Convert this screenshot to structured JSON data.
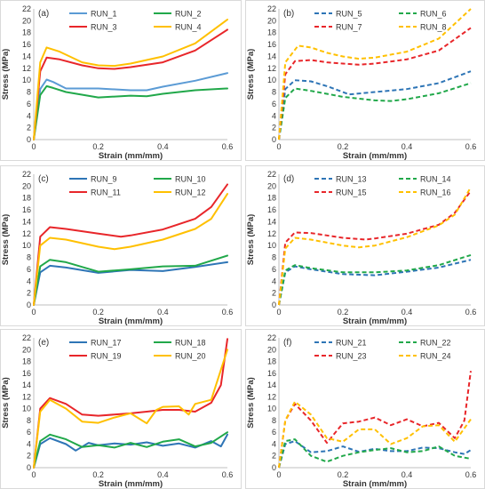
{
  "chart_data": [
    {
      "type": "line",
      "panel_label": "(a)",
      "xlabel": "Strain (mm/mm)",
      "ylabel": "Stress (MPa)",
      "xlim": [
        0,
        0.6
      ],
      "ylim": [
        0,
        22
      ],
      "xticks": [
        "0",
        "0.2",
        "0.4",
        "0.6"
      ],
      "yticks": [
        "0",
        "2",
        "4",
        "6",
        "8",
        "10",
        "12",
        "14",
        "16",
        "18",
        "20",
        "22"
      ],
      "legend": "top",
      "series": [
        {
          "name": "RUN_1",
          "color": "#5b9bd5",
          "dashed": false,
          "x": [
            0,
            0.02,
            0.04,
            0.06,
            0.1,
            0.2,
            0.3,
            0.35,
            0.4,
            0.5,
            0.6
          ],
          "y": [
            0,
            8.5,
            10.1,
            9.7,
            8.6,
            8.6,
            8.3,
            8.3,
            8.9,
            9.9,
            11.2
          ]
        },
        {
          "name": "RUN_2",
          "color": "#21a84a",
          "dashed": false,
          "x": [
            0,
            0.02,
            0.04,
            0.06,
            0.1,
            0.2,
            0.3,
            0.35,
            0.4,
            0.5,
            0.6
          ],
          "y": [
            0,
            7.5,
            9.0,
            8.7,
            8.0,
            7.1,
            7.4,
            7.3,
            7.7,
            8.3,
            8.6
          ]
        },
        {
          "name": "RUN_3",
          "color": "#e8262a",
          "dashed": false,
          "x": [
            0,
            0.02,
            0.04,
            0.08,
            0.15,
            0.2,
            0.25,
            0.3,
            0.4,
            0.5,
            0.6
          ],
          "y": [
            0,
            11.5,
            13.8,
            13.5,
            12.5,
            12.0,
            11.9,
            12.2,
            13.0,
            15.0,
            18.5
          ]
        },
        {
          "name": "RUN_4",
          "color": "#ffc000",
          "dashed": false,
          "x": [
            0,
            0.02,
            0.04,
            0.08,
            0.15,
            0.2,
            0.25,
            0.3,
            0.4,
            0.5,
            0.6
          ],
          "y": [
            0,
            13.0,
            15.5,
            14.8,
            13.0,
            12.5,
            12.4,
            12.8,
            14.0,
            16.2,
            20.2
          ]
        }
      ]
    },
    {
      "type": "line",
      "panel_label": "(b)",
      "xlabel": "Strain (mm/mm)",
      "ylabel": "Stress (MPa)",
      "xlim": [
        0,
        0.6
      ],
      "ylim": [
        0,
        22
      ],
      "xticks": [
        "0",
        "0.2",
        "0.4",
        "0.6"
      ],
      "yticks": [
        "0",
        "2",
        "4",
        "6",
        "8",
        "10",
        "12",
        "14",
        "16",
        "18",
        "20",
        "22"
      ],
      "legend": "top",
      "series": [
        {
          "name": "RUN_5",
          "color": "#2e75b6",
          "dashed": true,
          "x": [
            0,
            0.02,
            0.05,
            0.1,
            0.15,
            0.2,
            0.22,
            0.3,
            0.4,
            0.5,
            0.6
          ],
          "y": [
            0,
            8.5,
            10.0,
            9.8,
            9.0,
            8.0,
            7.6,
            8.0,
            8.5,
            9.5,
            11.5
          ]
        },
        {
          "name": "RUN_6",
          "color": "#21a84a",
          "dashed": true,
          "x": [
            0,
            0.02,
            0.05,
            0.1,
            0.2,
            0.3,
            0.35,
            0.4,
            0.5,
            0.6
          ],
          "y": [
            0,
            7.0,
            8.6,
            8.2,
            7.2,
            6.6,
            6.5,
            6.8,
            7.8,
            9.5
          ]
        },
        {
          "name": "RUN_7",
          "color": "#e8262a",
          "dashed": true,
          "x": [
            0,
            0.02,
            0.05,
            0.1,
            0.15,
            0.2,
            0.25,
            0.3,
            0.4,
            0.5,
            0.6
          ],
          "y": [
            0,
            11.0,
            13.2,
            13.4,
            13.0,
            12.8,
            12.6,
            12.8,
            13.5,
            15.0,
            18.8
          ]
        },
        {
          "name": "RUN_8",
          "color": "#ffc000",
          "dashed": true,
          "x": [
            0,
            0.02,
            0.06,
            0.1,
            0.15,
            0.2,
            0.25,
            0.3,
            0.4,
            0.5,
            0.6
          ],
          "y": [
            0,
            13.0,
            15.8,
            15.5,
            14.6,
            14.0,
            13.6,
            13.8,
            14.8,
            17.0,
            22.0
          ]
        }
      ]
    },
    {
      "type": "line",
      "panel_label": "(c)",
      "xlabel": "Strain (mm/mm)",
      "ylabel": "Stress (MPa)",
      "xlim": [
        0,
        0.6
      ],
      "ylim": [
        0,
        22
      ],
      "xticks": [
        "0",
        "0.2",
        "0.4",
        "0.6"
      ],
      "yticks": [
        "0",
        "2",
        "4",
        "6",
        "8",
        "10",
        "12",
        "14",
        "16",
        "18",
        "20",
        "22"
      ],
      "legend": "top",
      "series": [
        {
          "name": "RUN_9",
          "color": "#2e75b6",
          "dashed": false,
          "x": [
            0,
            0.02,
            0.05,
            0.1,
            0.2,
            0.3,
            0.35,
            0.4,
            0.5,
            0.6
          ],
          "y": [
            0,
            5.5,
            6.6,
            6.3,
            5.4,
            5.9,
            5.8,
            5.7,
            6.4,
            7.2
          ]
        },
        {
          "name": "RUN_10",
          "color": "#21a84a",
          "dashed": false,
          "x": [
            0,
            0.02,
            0.05,
            0.1,
            0.2,
            0.3,
            0.4,
            0.5,
            0.6
          ],
          "y": [
            0,
            6.5,
            7.6,
            7.2,
            5.6,
            6.0,
            6.5,
            6.6,
            8.3
          ]
        },
        {
          "name": "RUN_11",
          "color": "#e8262a",
          "dashed": false,
          "x": [
            0,
            0.02,
            0.05,
            0.1,
            0.2,
            0.27,
            0.3,
            0.4,
            0.5,
            0.55,
            0.6
          ],
          "y": [
            0,
            11.5,
            13.1,
            12.8,
            12.0,
            11.5,
            11.7,
            12.7,
            14.5,
            16.5,
            20.3
          ]
        },
        {
          "name": "RUN_12",
          "color": "#ffc000",
          "dashed": false,
          "x": [
            0,
            0.02,
            0.05,
            0.1,
            0.2,
            0.25,
            0.3,
            0.4,
            0.5,
            0.55,
            0.6
          ],
          "y": [
            0,
            10.0,
            11.3,
            11.0,
            9.8,
            9.4,
            9.8,
            11.0,
            12.8,
            14.5,
            18.7
          ]
        }
      ]
    },
    {
      "type": "line",
      "panel_label": "(d)",
      "xlabel": "Strain (mm/mm)",
      "ylabel": "Stress (MPa)",
      "xlim": [
        0,
        0.6
      ],
      "ylim": [
        0,
        22
      ],
      "xticks": [
        "0",
        "0.2",
        "0.4",
        "0.6"
      ],
      "yticks": [
        "0",
        "2",
        "4",
        "6",
        "8",
        "10",
        "12",
        "14",
        "16",
        "18",
        "20",
        "22"
      ],
      "legend": "top",
      "series": [
        {
          "name": "RUN_13",
          "color": "#2e75b6",
          "dashed": true,
          "x": [
            0,
            0.02,
            0.05,
            0.1,
            0.2,
            0.3,
            0.4,
            0.5,
            0.6
          ],
          "y": [
            0,
            5.5,
            6.5,
            6.0,
            5.2,
            5.0,
            5.6,
            6.3,
            7.6
          ]
        },
        {
          "name": "RUN_14",
          "color": "#21a84a",
          "dashed": true,
          "x": [
            0,
            0.02,
            0.05,
            0.1,
            0.2,
            0.3,
            0.4,
            0.5,
            0.6
          ],
          "y": [
            0,
            5.8,
            6.7,
            6.2,
            5.5,
            5.5,
            5.8,
            6.7,
            8.4
          ]
        },
        {
          "name": "RUN_15",
          "color": "#e8262a",
          "dashed": true,
          "x": [
            0,
            0.02,
            0.05,
            0.1,
            0.2,
            0.27,
            0.3,
            0.4,
            0.5,
            0.55,
            0.6
          ],
          "y": [
            0,
            10.5,
            12.2,
            12.1,
            11.3,
            11.0,
            11.2,
            12.0,
            13.5,
            15.5,
            19.2
          ]
        },
        {
          "name": "RUN_16",
          "color": "#ffc000",
          "dashed": true,
          "x": [
            0,
            0.02,
            0.05,
            0.1,
            0.2,
            0.25,
            0.3,
            0.4,
            0.5,
            0.55,
            0.6
          ],
          "y": [
            0,
            9.5,
            11.3,
            11.0,
            10.0,
            9.7,
            10.0,
            11.4,
            13.4,
            15.2,
            19.8
          ]
        }
      ]
    },
    {
      "type": "line",
      "panel_label": "(e)",
      "xlabel": "Strain (mm/mm)",
      "ylabel": "Stress (MPa)",
      "xlim": [
        0,
        0.6
      ],
      "ylim": [
        0,
        22
      ],
      "xticks": [
        "0",
        "0.2",
        "0.4",
        "0.6"
      ],
      "yticks": [
        "0",
        "2",
        "4",
        "6",
        "8",
        "10",
        "12",
        "14",
        "16",
        "18",
        "20",
        "22"
      ],
      "legend": "top",
      "series": [
        {
          "name": "RUN_17",
          "color": "#2e75b6",
          "dashed": false,
          "x": [
            0,
            0.02,
            0.05,
            0.1,
            0.13,
            0.17,
            0.2,
            0.25,
            0.3,
            0.35,
            0.4,
            0.45,
            0.5,
            0.55,
            0.58,
            0.6
          ],
          "y": [
            0,
            4.0,
            5.0,
            4.0,
            2.9,
            4.2,
            3.8,
            4.1,
            3.9,
            4.3,
            3.7,
            4.1,
            3.4,
            4.5,
            3.6,
            5.6
          ]
        },
        {
          "name": "RUN_18",
          "color": "#21a84a",
          "dashed": false,
          "x": [
            0,
            0.02,
            0.05,
            0.1,
            0.15,
            0.2,
            0.25,
            0.3,
            0.35,
            0.4,
            0.45,
            0.5,
            0.55,
            0.6
          ],
          "y": [
            0,
            4.5,
            5.6,
            4.8,
            3.5,
            3.8,
            3.4,
            4.2,
            3.5,
            4.4,
            4.8,
            3.6,
            4.2,
            6.0
          ]
        },
        {
          "name": "RUN_19",
          "color": "#e8262a",
          "dashed": false,
          "x": [
            0,
            0.02,
            0.05,
            0.1,
            0.15,
            0.2,
            0.3,
            0.35,
            0.4,
            0.45,
            0.5,
            0.55,
            0.58,
            0.6
          ],
          "y": [
            0,
            10.0,
            11.8,
            10.8,
            9.0,
            8.8,
            9.2,
            9.5,
            9.8,
            9.8,
            9.5,
            11.0,
            14.0,
            21.8
          ]
        },
        {
          "name": "RUN_20",
          "color": "#ffc000",
          "dashed": false,
          "x": [
            0,
            0.02,
            0.05,
            0.1,
            0.15,
            0.2,
            0.25,
            0.3,
            0.35,
            0.38,
            0.4,
            0.45,
            0.48,
            0.5,
            0.55,
            0.6
          ],
          "y": [
            0,
            9.5,
            11.5,
            10.0,
            7.8,
            7.6,
            8.5,
            9.2,
            7.5,
            9.8,
            10.3,
            10.4,
            9.0,
            10.8,
            11.5,
            20.0
          ]
        }
      ]
    },
    {
      "type": "line",
      "panel_label": "(f)",
      "xlabel": "Strain (mm/mm)",
      "ylabel": "Stress (MPa)",
      "xlim": [
        0,
        0.6
      ],
      "ylim": [
        0,
        22
      ],
      "xticks": [
        "0",
        "0.2",
        "0.4",
        "0.6"
      ],
      "yticks": [
        "0",
        "2",
        "4",
        "6",
        "8",
        "10",
        "12",
        "14",
        "16",
        "18",
        "20",
        "22"
      ],
      "legend": "top",
      "series": [
        {
          "name": "RUN_21",
          "color": "#2e75b6",
          "dashed": true,
          "x": [
            0,
            0.02,
            0.05,
            0.1,
            0.15,
            0.2,
            0.25,
            0.3,
            0.35,
            0.4,
            0.45,
            0.5,
            0.55,
            0.58,
            0.6
          ],
          "y": [
            0,
            4.0,
            4.5,
            2.6,
            2.8,
            3.6,
            2.7,
            3.2,
            2.8,
            2.8,
            3.4,
            3.3,
            2.6,
            2.3,
            3.0
          ]
        },
        {
          "name": "RUN_22",
          "color": "#21a84a",
          "dashed": true,
          "x": [
            0,
            0.02,
            0.05,
            0.1,
            0.15,
            0.2,
            0.25,
            0.3,
            0.35,
            0.4,
            0.45,
            0.5,
            0.55,
            0.6
          ],
          "y": [
            0,
            4.5,
            4.8,
            2.0,
            1.0,
            2.0,
            2.6,
            3.0,
            3.3,
            2.6,
            2.8,
            3.6,
            2.0,
            1.5
          ]
        },
        {
          "name": "RUN_23",
          "color": "#e8262a",
          "dashed": true,
          "x": [
            0,
            0.02,
            0.05,
            0.1,
            0.15,
            0.2,
            0.25,
            0.3,
            0.35,
            0.4,
            0.45,
            0.5,
            0.55,
            0.58,
            0.6
          ],
          "y": [
            0,
            8.0,
            10.8,
            8.0,
            4.2,
            7.5,
            7.8,
            8.5,
            7.2,
            8.2,
            7.0,
            7.6,
            5.0,
            8.0,
            16.4
          ]
        },
        {
          "name": "RUN_24",
          "color": "#ffc000",
          "dashed": true,
          "x": [
            0,
            0.02,
            0.05,
            0.1,
            0.15,
            0.2,
            0.25,
            0.3,
            0.35,
            0.4,
            0.45,
            0.5,
            0.55,
            0.6
          ],
          "y": [
            0,
            8.0,
            11.2,
            9.0,
            5.0,
            4.4,
            6.5,
            6.5,
            4.0,
            5.0,
            7.0,
            7.2,
            4.4,
            8.2
          ]
        }
      ]
    }
  ]
}
